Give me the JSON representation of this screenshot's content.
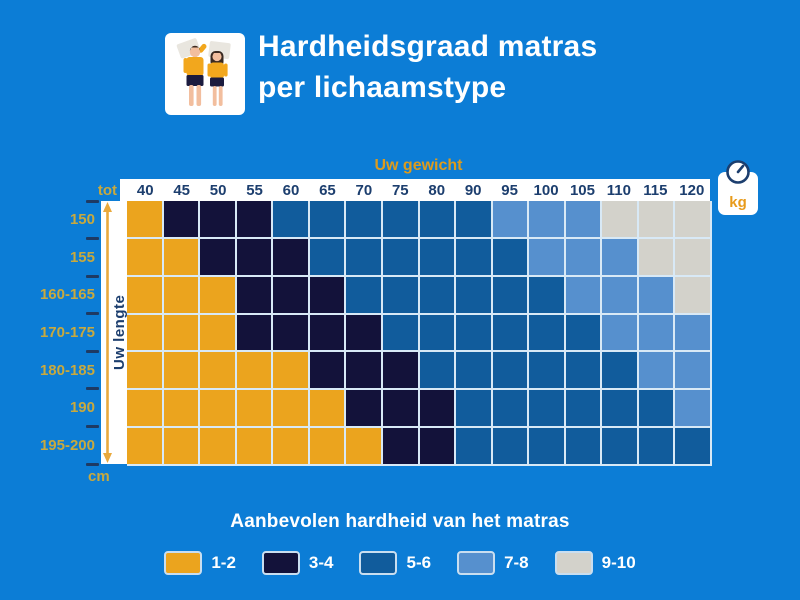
{
  "colors": {
    "background": "#0C7DD6",
    "header_bar_text": "#1C3E6E",
    "axis_label_gold": "#C8A93E",
    "axis_title_orange": "#DD9B1D",
    "grid_line": "#D8E9F6",
    "tick": "#1E3A63",
    "white": "#FFFFFF"
  },
  "header": {
    "title_line1": "Hardheidsgraad matras",
    "title_line2": "per lichaamstype",
    "icon": "couple-lying-on-mattress-icon"
  },
  "chart_data": {
    "type": "heatmap",
    "title": "Hardheidsgraad matras per lichaamstype",
    "x_axis": {
      "title": "Uw gewicht",
      "prefix": "tot",
      "unit": "kg"
    },
    "y_axis": {
      "title": "Uw lengte",
      "unit": "cm"
    },
    "x_labels": [
      "40",
      "45",
      "50",
      "55",
      "60",
      "65",
      "70",
      "75",
      "80",
      "90",
      "95",
      "100",
      "105",
      "110",
      "115",
      "120"
    ],
    "y_labels": [
      "150",
      "155",
      "160-165",
      "170-175",
      "180-185",
      "190",
      "195-200"
    ],
    "values": [
      [
        "1-2",
        "3-4",
        "3-4",
        "3-4",
        "5-6",
        "5-6",
        "5-6",
        "5-6",
        "5-6",
        "5-6",
        "7-8",
        "7-8",
        "7-8",
        "9-10",
        "9-10",
        "9-10"
      ],
      [
        "1-2",
        "1-2",
        "3-4",
        "3-4",
        "3-4",
        "5-6",
        "5-6",
        "5-6",
        "5-6",
        "5-6",
        "5-6",
        "7-8",
        "7-8",
        "7-8",
        "9-10",
        "9-10"
      ],
      [
        "1-2",
        "1-2",
        "1-2",
        "3-4",
        "3-4",
        "3-4",
        "5-6",
        "5-6",
        "5-6",
        "5-6",
        "5-6",
        "5-6",
        "7-8",
        "7-8",
        "7-8",
        "9-10"
      ],
      [
        "1-2",
        "1-2",
        "1-2",
        "3-4",
        "3-4",
        "3-4",
        "3-4",
        "5-6",
        "5-6",
        "5-6",
        "5-6",
        "5-6",
        "5-6",
        "7-8",
        "7-8",
        "7-8"
      ],
      [
        "1-2",
        "1-2",
        "1-2",
        "1-2",
        "1-2",
        "3-4",
        "3-4",
        "3-4",
        "5-6",
        "5-6",
        "5-6",
        "5-6",
        "5-6",
        "5-6",
        "7-8",
        "7-8"
      ],
      [
        "1-2",
        "1-2",
        "1-2",
        "1-2",
        "1-2",
        "1-2",
        "3-4",
        "3-4",
        "3-4",
        "5-6",
        "5-6",
        "5-6",
        "5-6",
        "5-6",
        "5-6",
        "7-8"
      ],
      [
        "1-2",
        "1-2",
        "1-2",
        "1-2",
        "1-2",
        "1-2",
        "1-2",
        "3-4",
        "3-4",
        "5-6",
        "5-6",
        "5-6",
        "5-6",
        "5-6",
        "5-6",
        "5-6"
      ]
    ],
    "palette": {
      "1-2": "#EBA41E",
      "3-4": "#13123A",
      "5-6": "#115C9C",
      "7-8": "#5690CE",
      "9-10": "#D3D2CB"
    },
    "legend_title": "Aanbevolen hardheid van het matras",
    "legend_labels": [
      "1-2",
      "3-4",
      "5-6",
      "7-8",
      "9-10"
    ],
    "legend_position": "bottom",
    "grid": true
  }
}
